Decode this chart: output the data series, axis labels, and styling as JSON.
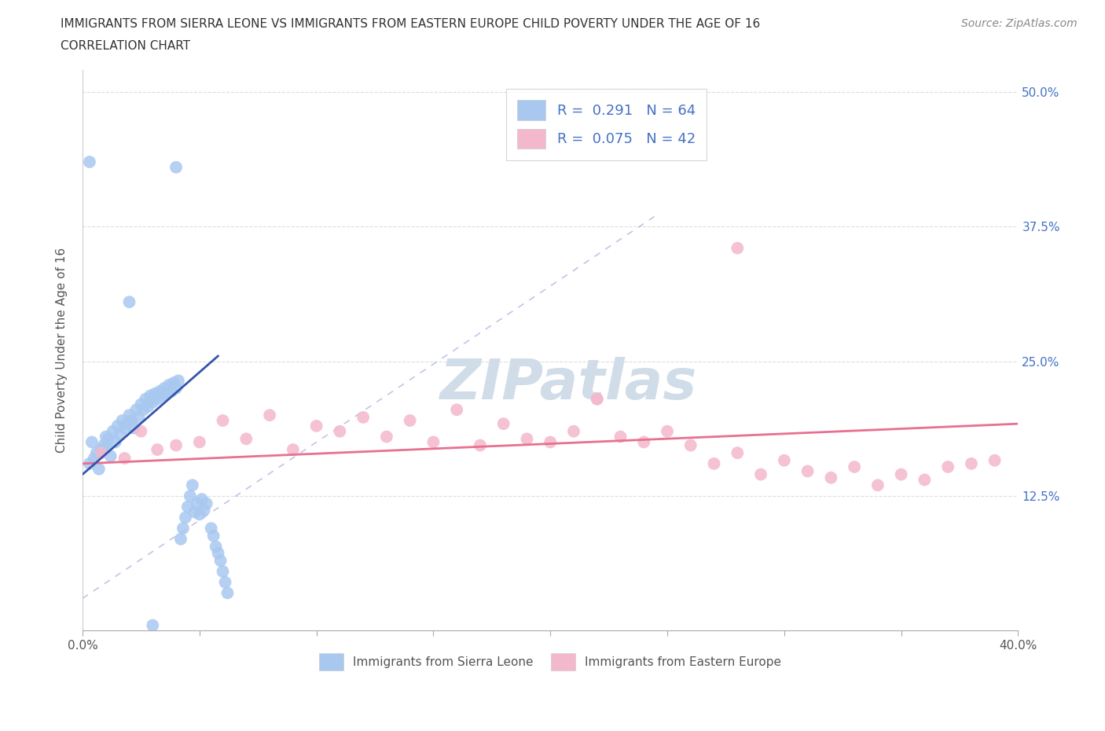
{
  "title": "IMMIGRANTS FROM SIERRA LEONE VS IMMIGRANTS FROM EASTERN EUROPE CHILD POVERTY UNDER THE AGE OF 16",
  "subtitle": "CORRELATION CHART",
  "source": "Source: ZipAtlas.com",
  "xlabel_blue": "Immigrants from Sierra Leone",
  "xlabel_pink": "Immigrants from Eastern Europe",
  "ylabel": "Child Poverty Under the Age of 16",
  "xlim": [
    0.0,
    0.4
  ],
  "ylim": [
    0.0,
    0.52
  ],
  "ytick_positions": [
    0.0,
    0.125,
    0.25,
    0.375,
    0.5
  ],
  "ytick_labels": [
    "",
    "12.5%",
    "25.0%",
    "37.5%",
    "50.0%"
  ],
  "xtick_positions": [
    0.0,
    0.05,
    0.1,
    0.15,
    0.2,
    0.25,
    0.3,
    0.35,
    0.4
  ],
  "xtick_labels": [
    "0.0%",
    "",
    "",
    "",
    "",
    "",
    "",
    "",
    "40.0%"
  ],
  "R_blue": 0.291,
  "N_blue": 64,
  "R_pink": 0.075,
  "N_pink": 42,
  "blue_scatter_color": "#a8c8f0",
  "pink_scatter_color": "#f4b8cc",
  "blue_line_color": "#3355aa",
  "pink_line_color": "#e87090",
  "diag_color": "#aaaadd",
  "grid_h_color": "#dddddd",
  "watermark_color": "#d0dde8",
  "blue_x": [
    0.003,
    0.004,
    0.005,
    0.006,
    0.007,
    0.008,
    0.009,
    0.01,
    0.01,
    0.011,
    0.012,
    0.013,
    0.014,
    0.015,
    0.016,
    0.017,
    0.018,
    0.019,
    0.02,
    0.021,
    0.022,
    0.023,
    0.024,
    0.025,
    0.026,
    0.027,
    0.028,
    0.029,
    0.03,
    0.031,
    0.032,
    0.033,
    0.034,
    0.035,
    0.036,
    0.037,
    0.038,
    0.039,
    0.04,
    0.041,
    0.042,
    0.043,
    0.044,
    0.045,
    0.046,
    0.047,
    0.048,
    0.049,
    0.05,
    0.051,
    0.052,
    0.053,
    0.055,
    0.056,
    0.057,
    0.058,
    0.059,
    0.06,
    0.061,
    0.062,
    0.04,
    0.003,
    0.02,
    0.03
  ],
  "blue_y": [
    0.155,
    0.175,
    0.16,
    0.165,
    0.15,
    0.168,
    0.172,
    0.17,
    0.18,
    0.178,
    0.162,
    0.185,
    0.175,
    0.19,
    0.182,
    0.195,
    0.188,
    0.192,
    0.2,
    0.195,
    0.188,
    0.205,
    0.198,
    0.21,
    0.205,
    0.215,
    0.208,
    0.218,
    0.212,
    0.22,
    0.215,
    0.222,
    0.218,
    0.225,
    0.22,
    0.228,
    0.222,
    0.23,
    0.225,
    0.232,
    0.085,
    0.095,
    0.105,
    0.115,
    0.125,
    0.135,
    0.11,
    0.118,
    0.108,
    0.122,
    0.112,
    0.118,
    0.095,
    0.088,
    0.078,
    0.072,
    0.065,
    0.055,
    0.045,
    0.035,
    0.43,
    0.435,
    0.305,
    0.005
  ],
  "pink_x": [
    0.008,
    0.018,
    0.025,
    0.032,
    0.04,
    0.05,
    0.06,
    0.07,
    0.08,
    0.09,
    0.1,
    0.11,
    0.12,
    0.13,
    0.14,
    0.15,
    0.16,
    0.17,
    0.18,
    0.19,
    0.2,
    0.21,
    0.22,
    0.23,
    0.24,
    0.25,
    0.26,
    0.27,
    0.28,
    0.29,
    0.3,
    0.31,
    0.32,
    0.33,
    0.34,
    0.35,
    0.36,
    0.37,
    0.38,
    0.39,
    0.28,
    0.22
  ],
  "pink_y": [
    0.165,
    0.16,
    0.185,
    0.168,
    0.172,
    0.175,
    0.195,
    0.178,
    0.2,
    0.168,
    0.19,
    0.185,
    0.198,
    0.18,
    0.195,
    0.175,
    0.205,
    0.172,
    0.192,
    0.178,
    0.175,
    0.185,
    0.215,
    0.18,
    0.175,
    0.185,
    0.172,
    0.155,
    0.165,
    0.145,
    0.158,
    0.148,
    0.142,
    0.152,
    0.135,
    0.145,
    0.14,
    0.152,
    0.155,
    0.158,
    0.355,
    0.215
  ]
}
